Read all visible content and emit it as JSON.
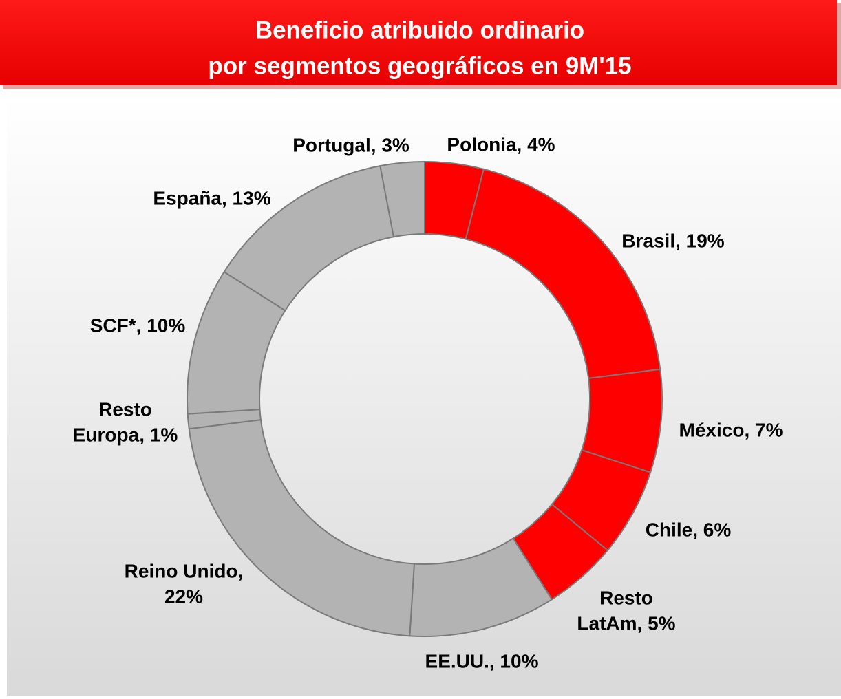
{
  "chart_data": {
    "type": "donut",
    "title": [
      "Beneficio atribuido ordinario",
      "por segmentos geográficos en 9M'15"
    ],
    "values": [
      4,
      19,
      7,
      6,
      5,
      10,
      22,
      1,
      10,
      13,
      3
    ],
    "labels": [
      [
        "Polonia, 4%"
      ],
      [
        "Brasil, 19%"
      ],
      [
        "México, 7%"
      ],
      [
        "Chile, 6%"
      ],
      [
        "Resto",
        "LatAm, 5%"
      ],
      [
        "EE.UU., 10%"
      ],
      [
        "Reino Unido,",
        "22%"
      ],
      [
        "Resto",
        "Europa, 1%"
      ],
      [
        "SCF*, 10%"
      ],
      [
        "España, 13%"
      ],
      [
        "Portugal, 3%"
      ]
    ],
    "colors": [
      "#ff0000",
      "#ff0000",
      "#ff0000",
      "#ff0000",
      "#ff0000",
      "#b3b3b3",
      "#b3b3b3",
      "#b3b3b3",
      "#b3b3b3",
      "#b3b3b3",
      "#b3b3b3"
    ]
  }
}
